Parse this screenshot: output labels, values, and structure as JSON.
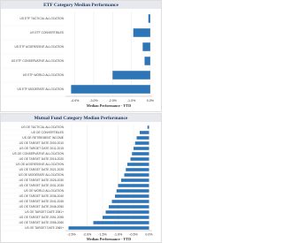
{
  "chart_data": [
    {
      "type": "bar",
      "orientation": "horizontal",
      "title": "ETF Category Median Performance",
      "x_label": "Median Performance - YTD",
      "categories": [
        "US ETF TACTICAL ALLOCATION",
        "US ETF CONVERTIBLES",
        "US ETF AGGRESSIVE ALLOCATION",
        "US ETF CONSERVATIVE ALLOCATION",
        "US ETF WORLD ALLOCATION",
        "US ETF MODERATE ALLOCATION"
      ],
      "values": [
        -0.1,
        -0.9,
        -0.4,
        -0.3,
        -2.0,
        -4.2
      ],
      "color": "#2e75b6",
      "xlim": [
        -4.5,
        0.1
      ],
      "xticks": [
        {
          "value": -4,
          "label": "-4.0%"
        },
        {
          "value": -3,
          "label": "-3.0%"
        },
        {
          "value": -2,
          "label": "-2.0%"
        },
        {
          "value": -1,
          "label": "-1.0%"
        },
        {
          "value": 0,
          "label": "0.0%"
        }
      ],
      "grid": true
    },
    {
      "type": "bar",
      "orientation": "horizontal",
      "title": "Mutual Fund Category Median Performance",
      "x_label": "Median Performance - YTD",
      "categories": [
        "US OE TACTICAL ALLOCATION",
        "US OE CONVERTIBLES",
        "US OE RETIREMENT INCOME",
        "US OE TARGET DATE 2000-2010",
        "US OE TARGET DATE 2011-2015",
        "US OE CONSERVATIVE ALLOCATION",
        "US OE TARGET DATE 2016-2020",
        "US OE AGGRESSIVE ALLOCATION",
        "US OE TARGET DATE 2021-2025",
        "US OE MODERATE ALLOCATION",
        "US OE TARGET DATE 2026-2030",
        "US OE TARGET DATE 2031-2035",
        "US OE WORLD ALLOCATION",
        "US OE TARGET DATE 2036-2040",
        "US OE TARGET DATE 2041-2045",
        "US OE TARGET DATE 2046-2050",
        "US OE TARGET DATE 2051+",
        "US OE TARGET DATE 2051-2055",
        "US OE TARGET DATE 2056-2060",
        "US OE TARGET DATE 2060+"
      ],
      "values": [
        -0.05,
        -0.3,
        -0.4,
        -0.45,
        -0.5,
        -0.55,
        -0.6,
        -0.7,
        -0.75,
        -0.8,
        -0.9,
        -1.0,
        -1.05,
        -1.1,
        -1.2,
        -1.3,
        -1.4,
        -1.5,
        -1.8,
        -2.6
      ],
      "color": "#2e75b6",
      "xlim": [
        -2.7,
        0.1
      ],
      "xticks": [
        {
          "value": -2.5,
          "label": "-2.5%"
        },
        {
          "value": -2,
          "label": "-2.0%"
        },
        {
          "value": -1.5,
          "label": "-1.5%"
        },
        {
          "value": -1,
          "label": "-1.0%"
        },
        {
          "value": -0.5,
          "label": "-0.5%"
        },
        {
          "value": 0,
          "label": "0.0%"
        }
      ],
      "grid": true
    }
  ]
}
